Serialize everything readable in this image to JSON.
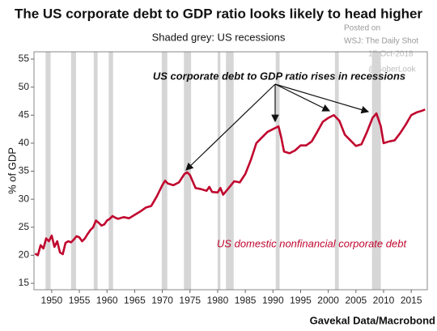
{
  "chart_data": {
    "type": "line",
    "title": "The US corporate debt to GDP ratio looks likely to head higher",
    "subtitle": "Shaded grey: US recessions",
    "watermark": [
      "Posted on",
      "WSJ: The Daily Shot",
      "17-Oct-2018",
      "@SoberLook"
    ],
    "annotation": "US corporate debt to GDP ratio rises in recessions",
    "ylabel": "% of GDP",
    "source": "Gavekal Data/Macrobond",
    "series": [
      {
        "name": "US domestic nonfinancial corporate debt",
        "color": "#c0062e",
        "x": [
          1947,
          1947.5,
          1948,
          1948.5,
          1949,
          1949.5,
          1950,
          1950.5,
          1951,
          1951.5,
          1952,
          1952.5,
          1953,
          1953.5,
          1954,
          1954.5,
          1955,
          1955.5,
          1956,
          1956.5,
          1957,
          1957.5,
          1958,
          1958.5,
          1959,
          1959.5,
          1960,
          1960.5,
          1961,
          1961.5,
          1962,
          1963,
          1964,
          1965,
          1966,
          1967,
          1968,
          1969,
          1970,
          1970.5,
          1971,
          1972,
          1973,
          1974,
          1974.5,
          1975,
          1976,
          1977,
          1978,
          1978.5,
          1979,
          1980,
          1980.5,
          1981,
          1982,
          1983,
          1984,
          1985,
          1986,
          1987,
          1988,
          1989,
          1990,
          1991,
          1991.5,
          1992,
          1993,
          1994,
          1995,
          1996,
          1997,
          1998,
          1999,
          2000,
          2001,
          2002,
          2003,
          2004,
          2005,
          2006,
          2007,
          2008,
          2008.7,
          2009.5,
          2010,
          2011,
          2012,
          2013,
          2014,
          2015,
          2016,
          2017,
          2017.5
        ],
        "values": [
          20.3,
          20,
          21.8,
          21.2,
          23,
          22.5,
          23.5,
          21.5,
          22.5,
          20.5,
          20.2,
          22.2,
          22.5,
          22.3,
          22.8,
          23.4,
          23.2,
          22.5,
          23,
          23.8,
          24.5,
          25,
          26.2,
          25.8,
          25.3,
          25.5,
          26.2,
          26.5,
          27,
          26.7,
          26.5,
          26.8,
          26.6,
          27.2,
          27.8,
          28.5,
          28.8,
          30.5,
          32.5,
          33.3,
          32.8,
          32.5,
          33,
          34.5,
          34.8,
          34.3,
          32,
          31.8,
          31.5,
          32.2,
          31.3,
          31.2,
          32,
          30.8,
          32,
          33.2,
          33,
          34.5,
          37,
          40,
          41,
          42,
          42.5,
          43,
          41,
          38.5,
          38.2,
          38.7,
          39.6,
          39.6,
          40.3,
          42,
          43.8,
          44.5,
          45,
          44,
          41.5,
          40.5,
          39.5,
          39.8,
          42,
          44.5,
          45.3,
          43,
          40,
          40.3,
          40.5,
          41.8,
          43.3,
          45,
          45.5,
          45.8,
          46
        ]
      }
    ],
    "recessions": [
      [
        1948.9,
        1949.8
      ],
      [
        1953.5,
        1954.4
      ],
      [
        1957.6,
        1958.3
      ],
      [
        1960.3,
        1961.1
      ],
      [
        1969.9,
        1970.9
      ],
      [
        1973.9,
        1975.2
      ],
      [
        1980,
        1980.5
      ],
      [
        1981.5,
        1982.9
      ],
      [
        1990.5,
        1991.2
      ],
      [
        2001.2,
        2001.9
      ],
      [
        2007.9,
        2009.5
      ]
    ],
    "recession_color": "#d6d6d6",
    "xlim": [
      1946.8,
      2017.9
    ],
    "ylim": [
      13.85,
      56.3
    ],
    "xticks": [
      1950,
      1955,
      1960,
      1965,
      1970,
      1975,
      1980,
      1985,
      1990,
      1995,
      2000,
      2005,
      2010,
      2015
    ],
    "yticks": [
      15,
      20,
      25,
      30,
      35,
      40,
      45,
      50,
      55
    ]
  }
}
